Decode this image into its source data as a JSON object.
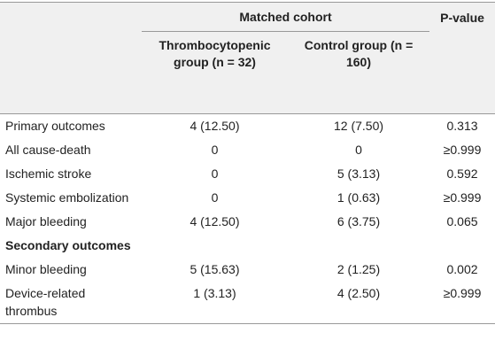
{
  "table": {
    "header": {
      "group": "Matched cohort",
      "p_value": "P-value",
      "columns": [
        "Thrombocytopenic group (n = 32)",
        "Control group (n = 160)"
      ]
    },
    "rows": [
      [
        "Primary outcomes",
        "4 (12.50)",
        "12 (7.50)",
        "0.313"
      ],
      [
        "All cause-death",
        "0",
        "0",
        "≥0.999"
      ],
      [
        "Ischemic stroke",
        "0",
        "5 (3.13)",
        "0.592"
      ],
      [
        "Systemic embolization",
        "0",
        "1 (0.63)",
        "≥0.999"
      ],
      [
        "Major bleeding",
        "4 (12.50)",
        "6 (3.75)",
        "0.065"
      ],
      [
        "Secondary outcomes"
      ],
      [
        "Minor bleeding",
        "5 (15.63)",
        "2 (1.25)",
        "0.002"
      ],
      [
        "Device-related thrombus",
        "1 (3.13)",
        "4 (2.50)",
        "≥0.999"
      ]
    ]
  }
}
